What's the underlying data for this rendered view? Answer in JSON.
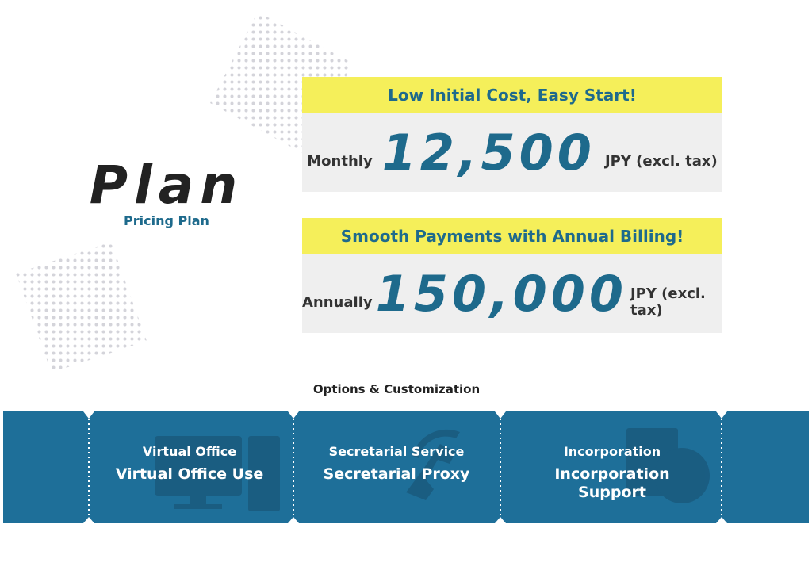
{
  "header": {
    "title": "Plan",
    "subtitle": "Pricing Plan"
  },
  "plans": [
    {
      "tagline": "Low Initial Cost, Easy Start!",
      "period": "Monthly",
      "price": "12,500",
      "unit": "JPY (excl. tax)"
    },
    {
      "tagline": "Smooth Payments with Annual Billing!",
      "period": "Annually",
      "price": "150,000",
      "unit": "JPY (excl. tax)"
    }
  ],
  "options": {
    "title": "Options & Customization",
    "items": [
      {
        "category": "Virtual Office",
        "name": "Virtual Office Use"
      },
      {
        "category": "Secretarial Service",
        "name": "Secretarial Proxy"
      },
      {
        "category": "Incorporation",
        "name": "Incorporation Support"
      }
    ]
  }
}
